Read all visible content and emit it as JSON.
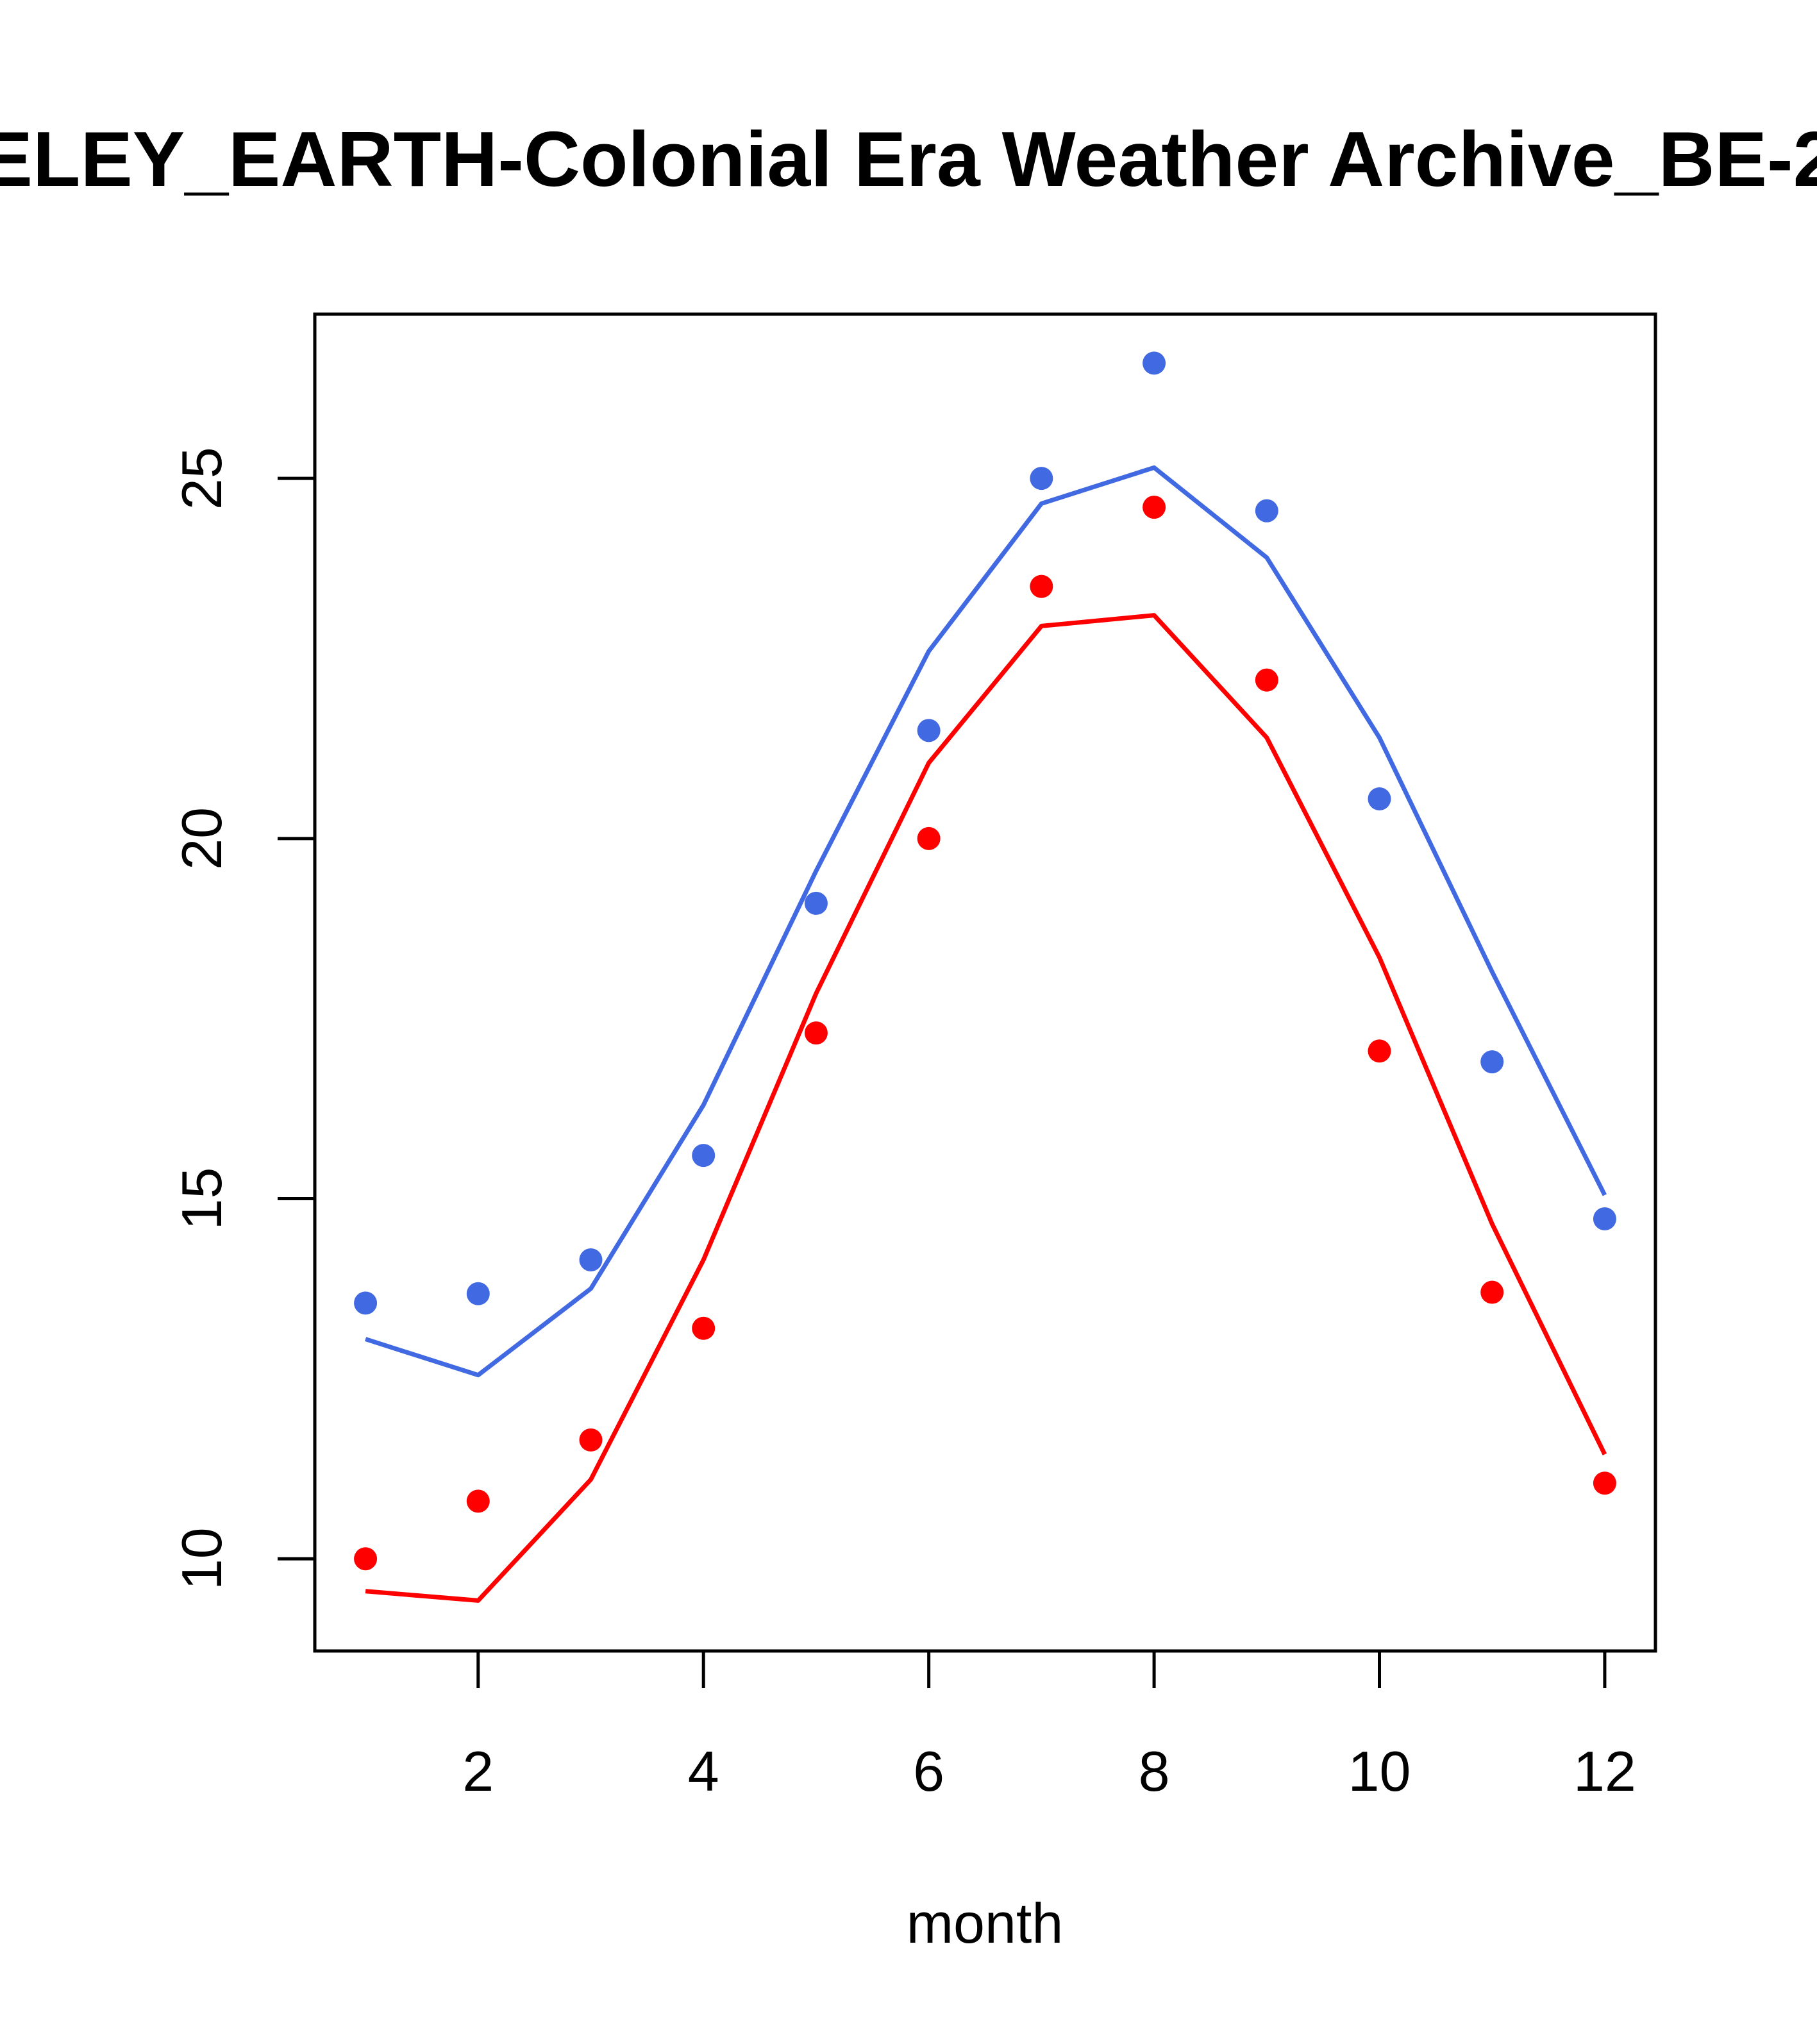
{
  "chart_data": {
    "type": "scatter",
    "title": "ELEY_EARTH-Colonial Era Weather Archive_BE-2",
    "xlabel": "month",
    "ylabel": "",
    "xlim": [
      0.55,
      12.45
    ],
    "ylim": [
      8.72,
      27.28
    ],
    "x_ticks": [
      2,
      4,
      6,
      8,
      10,
      12
    ],
    "y_ticks": [
      10,
      15,
      20,
      25
    ],
    "grid": false,
    "legend": "none",
    "series": [
      {
        "color": "#4169e1",
        "point_values": [
          13.55,
          13.68,
          14.15,
          15.6,
          19.1,
          21.5,
          25.0,
          26.6,
          24.55,
          20.55,
          16.9,
          14.72
        ],
        "line_values": [
          13.05,
          12.55,
          13.75,
          16.3,
          19.55,
          22.6,
          24.65,
          25.15,
          23.9,
          21.4,
          18.15,
          15.05
        ]
      },
      {
        "color": "#ff0000",
        "point_values": [
          10.0,
          10.8,
          11.65,
          13.2,
          17.3,
          20.0,
          23.5,
          24.6,
          22.2,
          17.05,
          13.7,
          11.05
        ],
        "line_values": [
          9.55,
          9.42,
          11.1,
          14.15,
          17.85,
          21.05,
          22.95,
          23.1,
          21.4,
          18.35,
          14.65,
          11.45
        ]
      }
    ],
    "x": [
      1,
      2,
      3,
      4,
      5,
      6,
      7,
      8,
      9,
      10,
      11,
      12
    ]
  }
}
